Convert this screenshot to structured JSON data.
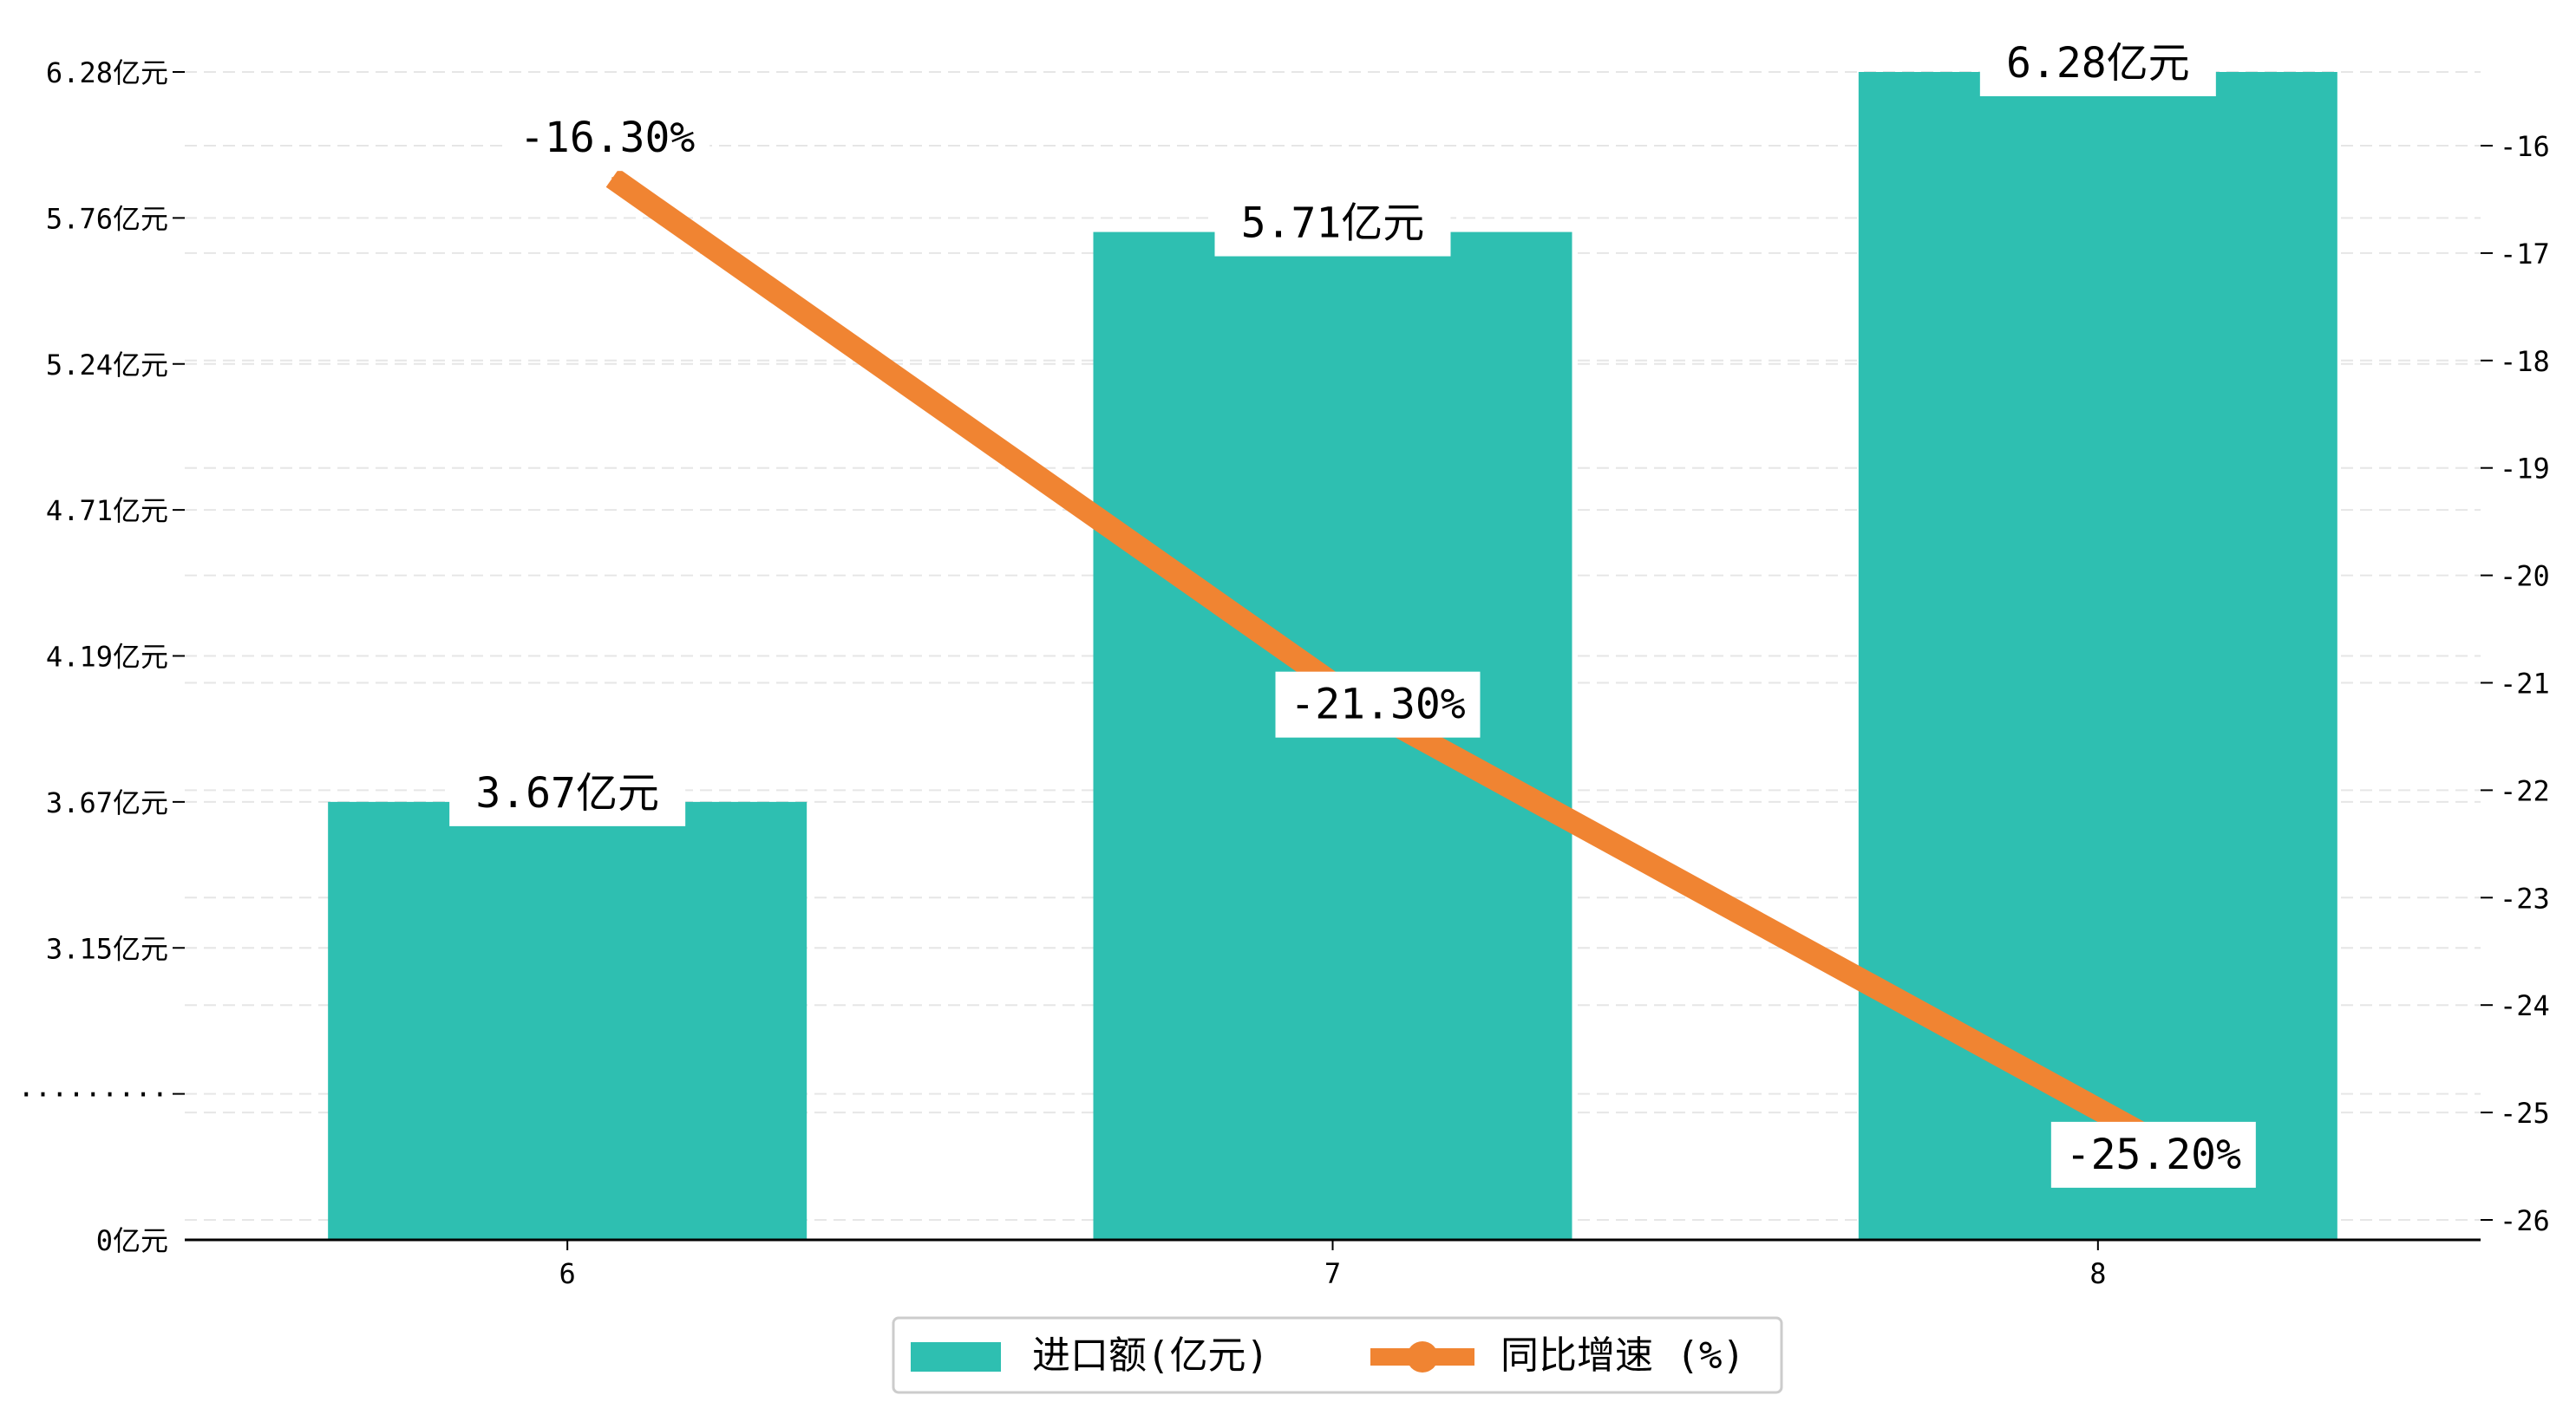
{
  "chart_data": {
    "type": "bar+line",
    "categories": [
      "6",
      "7",
      "8"
    ],
    "series": [
      {
        "name": "进口额(亿元)",
        "type": "bar",
        "axis": "left",
        "values": [
          3.67,
          5.71,
          6.28
        ],
        "labels": [
          "3.67亿元",
          "5.71亿元",
          "6.28亿元"
        ]
      },
      {
        "name": "同比增速 (%)",
        "type": "line",
        "axis": "right",
        "values": [
          -16.3,
          -21.3,
          -25.2
        ],
        "labels": [
          "-16.30%",
          "-21.30%",
          "-25.20%"
        ]
      }
    ],
    "y_left": {
      "tick_values": [
        0,
        2.63,
        3.15,
        3.67,
        4.19,
        4.71,
        5.24,
        5.76,
        6.28
      ],
      "tick_labels": [
        "0亿元",
        "·········",
        "3.15亿元",
        "3.67亿元",
        "4.19亿元",
        "4.71亿元",
        "5.24亿元",
        "5.76亿元",
        "6.28亿元"
      ],
      "broken_axis": true
    },
    "y_right": {
      "tick_values": [
        -16,
        -17,
        -18,
        -19,
        -20,
        -21,
        -22,
        -23,
        -24,
        -25,
        -26
      ],
      "tick_labels": [
        "-16",
        "-17",
        "-18",
        "-19",
        "-20",
        "-21",
        "-22",
        "-23",
        "-24",
        "-25",
        "-26"
      ],
      "ylim": [
        -26.2,
        -15.3
      ]
    },
    "grid": true,
    "legend_position": "bottom-center",
    "colors": {
      "bar": "#2ebfb1",
      "line": "#f08432",
      "grid": "#e6e6e6"
    }
  }
}
